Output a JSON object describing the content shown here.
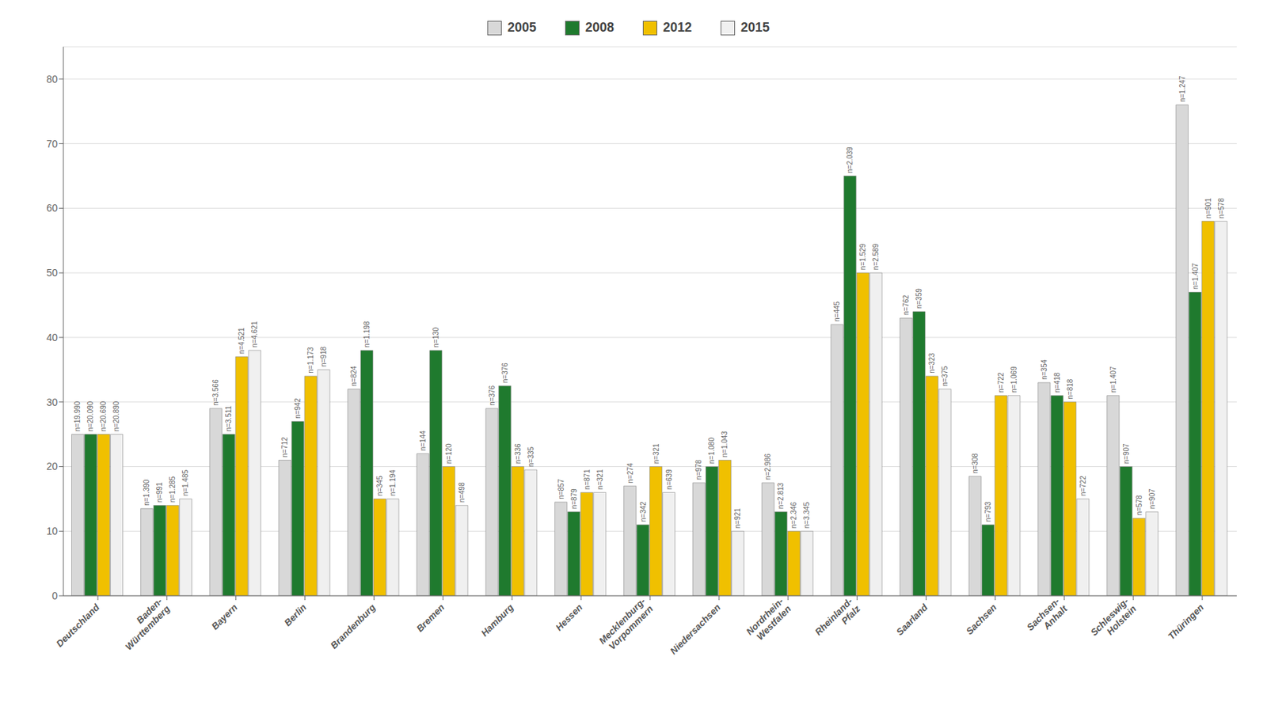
{
  "chart_data": {
    "type": "bar",
    "categories": [
      "Deutschland",
      "Baden-\nWürttemberg",
      "Bayern",
      "Berlin",
      "Brandenburg",
      "Bremen",
      "Hamburg",
      "Hessen",
      "Mecklenburg-\nVorpommern",
      "Niedersachsen",
      "Nordrhein-\nWestfalen",
      "Rheinland-\nPfalz",
      "Saarland",
      "Sachsen",
      "Sachsen-\nAnhalt",
      "Schleswig-\nHolstein",
      "Thüringen"
    ],
    "series": [
      {
        "name": "2005",
        "color": "#d8d8d8",
        "values": [
          25.0,
          13.5,
          29.0,
          21.0,
          32.0,
          22.0,
          29.0,
          14.5,
          17.0,
          17.5,
          17.5,
          42.0,
          43.0,
          18.5,
          33.0,
          31.0,
          76.0
        ],
        "n_labels": [
          "n=19.990",
          "n=1.390",
          "n=3.566",
          "n=712",
          "n=824",
          "n=144",
          "n=376",
          "n=857",
          "n=274",
          "n=978",
          "n=2.986",
          "n=445",
          "n=762",
          "n=308",
          "n=354",
          "n=1.407",
          "n=1.247"
        ]
      },
      {
        "name": "2008",
        "color": "#1f7a2e",
        "values": [
          25.0,
          14.0,
          25.0,
          27.0,
          38.0,
          38.0,
          32.5,
          13.0,
          11.0,
          20.0,
          13.0,
          65.0,
          44.0,
          11.0,
          31.0,
          20.0,
          47.0
        ],
        "n_labels": [
          "n=20.090",
          "n=991",
          "n=3.511",
          "n=942",
          "n=1.198",
          "n=130",
          "n=376",
          "n=879",
          "n=342",
          "n=1.080",
          "n=2.813",
          "n=2.039",
          "n=359",
          "n=793",
          "n=418",
          "n=907",
          "n=1.407"
        ]
      },
      {
        "name": "2012",
        "color": "#f0c000",
        "values": [
          25.0,
          14.0,
          37.0,
          34.0,
          15.0,
          20.0,
          20.0,
          16.0,
          20.0,
          21.0,
          10.0,
          50.0,
          34.0,
          31.0,
          30.0,
          12.0,
          58.0
        ],
        "n_labels": [
          "n=20.690",
          "n=1.285",
          "n=4.521",
          "n=1.173",
          "n=345",
          "n=120",
          "n=336",
          "n=871",
          "n=321",
          "n=1.043",
          "n=2.346",
          "n=1.529",
          "n=323",
          "n=722",
          "n=818",
          "n=578",
          "n=901"
        ]
      },
      {
        "name": "2015",
        "color": "#f0f0f0",
        "values": [
          25.0,
          15.0,
          38.0,
          35.0,
          15.0,
          14.0,
          19.5,
          16.0,
          16.0,
          10.0,
          10.0,
          50.0,
          32.0,
          31.0,
          15.0,
          13.0,
          58.0
        ],
        "n_labels": [
          "n=20.890",
          "n=1.485",
          "n=4.621",
          "n=918",
          "n=1.194",
          "n=498",
          "n=335",
          "n=321",
          "n=639",
          "n=921",
          "n=3.345",
          "n=2.589",
          "n=375",
          "n=1.069",
          "n=722",
          "n=907",
          "n=578"
        ]
      }
    ],
    "ylim": [
      0,
      85
    ],
    "yticks": [
      0,
      10,
      20,
      30,
      40,
      50,
      60,
      70,
      80
    ],
    "grid": true,
    "legend": "top"
  }
}
